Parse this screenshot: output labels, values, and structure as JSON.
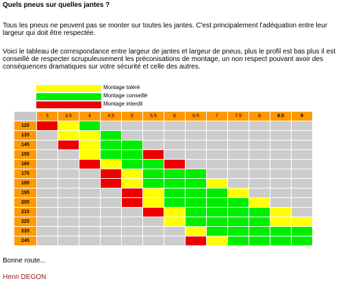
{
  "title": "Quels pneus sur quelles jantes ?",
  "paragraph1": "Tous les pneus ne peuvent pas se monter sur toutes les jantes. C'est principalement l'adéquation entre leur largeur qui doit être respectée.",
  "paragraph2": "Voici le tableau de correspondance entre largeur de jantes et largeur de pneus, plus le profil est bas plus il est conseillé de respecter scrupuleusement les préconisations de montage, un non respect pouvant avoir des conséquences dramatiques sur votre sécurité et celle des autres.",
  "legend": [
    {
      "label": "Montage toléré",
      "color": "#ffff00"
    },
    {
      "label": "Montage conseillé",
      "color": "#00ee00"
    },
    {
      "label": "Montage interdit",
      "color": "#ee0000"
    }
  ],
  "table": {
    "rim_widths": [
      "3",
      "3.5",
      "4",
      "4.5",
      "5",
      "5.5",
      "6",
      "6.5",
      "7",
      "7.5",
      "8",
      "8.5",
      "9"
    ],
    "rows": [
      {
        "tire": "125",
        "cells": [
          "red",
          "yellow",
          "green",
          "gray",
          "gray",
          "gray",
          "gray",
          "gray",
          "gray",
          "gray",
          "gray",
          "gray",
          "gray"
        ]
      },
      {
        "tire": "135",
        "cells": [
          "gray",
          "yellow",
          "yellow",
          "green",
          "gray",
          "gray",
          "gray",
          "gray",
          "gray",
          "gray",
          "gray",
          "gray",
          "gray"
        ]
      },
      {
        "tire": "145",
        "cells": [
          "gray",
          "red",
          "yellow",
          "green",
          "green",
          "gray",
          "gray",
          "gray",
          "gray",
          "gray",
          "gray",
          "gray",
          "gray"
        ]
      },
      {
        "tire": "155",
        "cells": [
          "gray",
          "gray",
          "yellow",
          "green",
          "green",
          "red",
          "gray",
          "gray",
          "gray",
          "gray",
          "gray",
          "gray",
          "gray"
        ]
      },
      {
        "tire": "165",
        "cells": [
          "gray",
          "gray",
          "red",
          "yellow",
          "green",
          "green",
          "red",
          "gray",
          "gray",
          "gray",
          "gray",
          "gray",
          "gray"
        ]
      },
      {
        "tire": "175",
        "cells": [
          "gray",
          "gray",
          "gray",
          "red",
          "yellow",
          "green",
          "green",
          "green",
          "gray",
          "gray",
          "gray",
          "gray",
          "gray"
        ]
      },
      {
        "tire": "185",
        "cells": [
          "gray",
          "gray",
          "gray",
          "red",
          "yellow",
          "green",
          "green",
          "green",
          "yellow",
          "gray",
          "gray",
          "gray",
          "gray"
        ]
      },
      {
        "tire": "195",
        "cells": [
          "gray",
          "gray",
          "gray",
          "gray",
          "red",
          "yellow",
          "green",
          "green",
          "green",
          "yellow",
          "gray",
          "gray",
          "gray"
        ]
      },
      {
        "tire": "205",
        "cells": [
          "gray",
          "gray",
          "gray",
          "gray",
          "red",
          "yellow",
          "green",
          "green",
          "green",
          "green",
          "yellow",
          "gray",
          "gray"
        ]
      },
      {
        "tire": "215",
        "cells": [
          "gray",
          "gray",
          "gray",
          "gray",
          "gray",
          "red",
          "yellow",
          "green",
          "green",
          "green",
          "green",
          "yellow",
          "gray"
        ]
      },
      {
        "tire": "225",
        "cells": [
          "gray",
          "gray",
          "gray",
          "gray",
          "gray",
          "gray",
          "yellow",
          "green",
          "green",
          "green",
          "green",
          "yellow",
          "yellow"
        ]
      },
      {
        "tire": "235",
        "cells": [
          "gray",
          "gray",
          "gray",
          "gray",
          "gray",
          "gray",
          "gray",
          "yellow",
          "green",
          "green",
          "green",
          "green",
          "green"
        ]
      },
      {
        "tire": "245",
        "cells": [
          "gray",
          "gray",
          "gray",
          "gray",
          "gray",
          "gray",
          "gray",
          "red",
          "yellow",
          "green",
          "green",
          "green",
          "green"
        ]
      }
    ]
  },
  "closing": "Bonne route...",
  "author": "Henri DEGON"
}
